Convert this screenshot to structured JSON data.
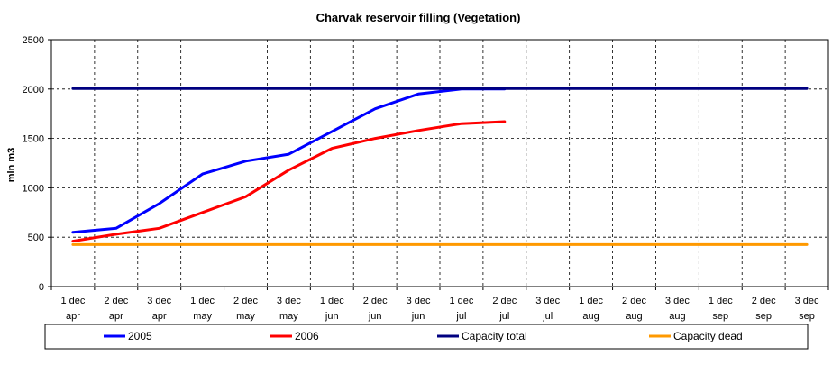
{
  "chart_data": {
    "type": "line",
    "title": "Charvak reservoir filling  (Vegetation)",
    "ylabel": "mln m3",
    "xlabel": "",
    "ylim": [
      0,
      2500
    ],
    "yticks": [
      0,
      500,
      1000,
      1500,
      2000,
      2500
    ],
    "grid": true,
    "legend_position": "bottom",
    "categories": [
      {
        "line1": "1 dec",
        "line2": "apr"
      },
      {
        "line1": "2 dec",
        "line2": "apr"
      },
      {
        "line1": "3 dec",
        "line2": "apr"
      },
      {
        "line1": "1 dec",
        "line2": "may"
      },
      {
        "line1": "2 dec",
        "line2": "may"
      },
      {
        "line1": "3 dec",
        "line2": "may"
      },
      {
        "line1": "1 dec",
        "line2": "jun"
      },
      {
        "line1": "2 dec",
        "line2": "jun"
      },
      {
        "line1": "3 dec",
        "line2": "jun"
      },
      {
        "line1": "1 dec",
        "line2": "jul"
      },
      {
        "line1": "2 dec",
        "line2": "jul"
      },
      {
        "line1": "3 dec",
        "line2": "jul"
      },
      {
        "line1": "1 dec",
        "line2": "aug"
      },
      {
        "line1": "2 dec",
        "line2": "aug"
      },
      {
        "line1": "3 dec",
        "line2": "aug"
      },
      {
        "line1": "1 dec",
        "line2": "sep"
      },
      {
        "line1": "2 dec",
        "line2": "sep"
      },
      {
        "line1": "3 dec",
        "line2": "sep"
      }
    ],
    "series": [
      {
        "name": "2005",
        "color": "#0000ff",
        "values": [
          550,
          590,
          840,
          1140,
          1270,
          1340,
          1570,
          1800,
          1950,
          2000,
          2000,
          null,
          null,
          null,
          null,
          null,
          null,
          null
        ]
      },
      {
        "name": "2006",
        "color": "#ff0000",
        "values": [
          460,
          530,
          590,
          750,
          910,
          1180,
          1400,
          1500,
          1580,
          1650,
          1670,
          null,
          null,
          null,
          null,
          null,
          null,
          null
        ]
      },
      {
        "name": "Capacity total",
        "color": "#000080",
        "values": [
          2005,
          2005,
          2005,
          2005,
          2005,
          2005,
          2005,
          2005,
          2005,
          2005,
          2005,
          2005,
          2005,
          2005,
          2005,
          2005,
          2005,
          2005
        ]
      },
      {
        "name": "Capacity dead",
        "color": "#ff9900",
        "values": [
          425,
          425,
          425,
          425,
          425,
          425,
          425,
          425,
          425,
          425,
          425,
          425,
          425,
          425,
          425,
          425,
          425,
          425
        ]
      }
    ]
  }
}
